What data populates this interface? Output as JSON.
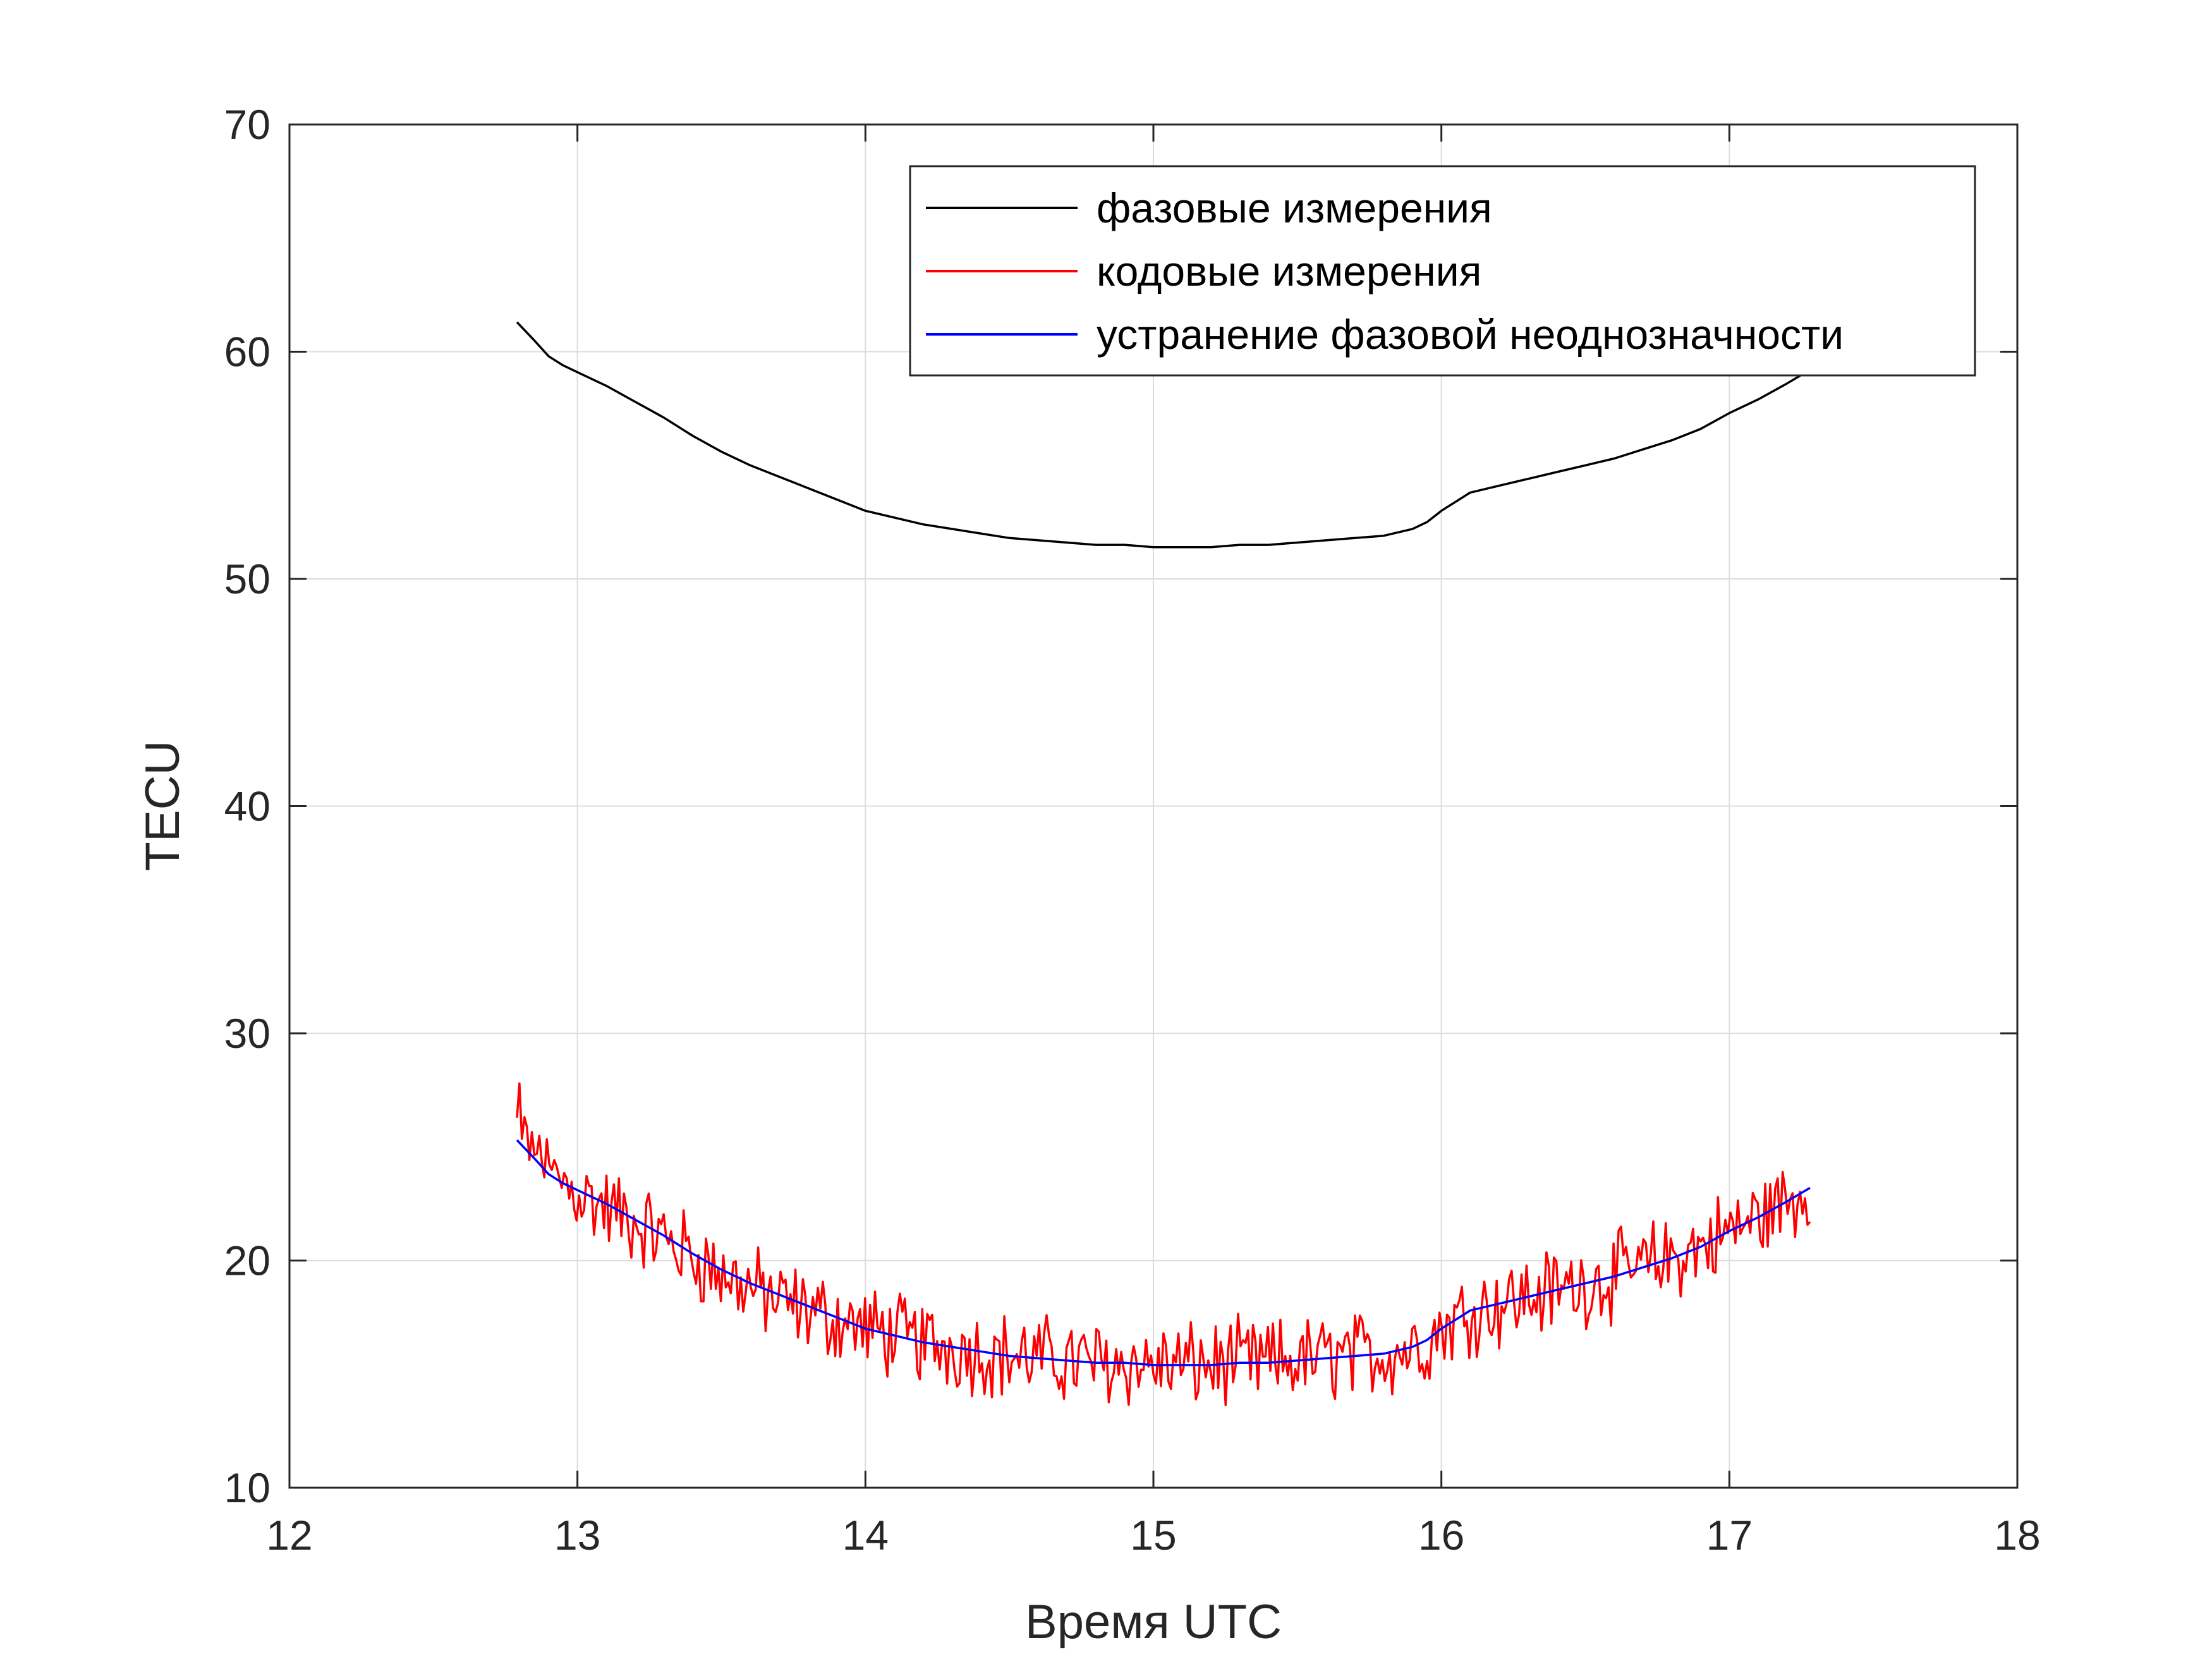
{
  "chart_data": {
    "type": "line",
    "xlabel": "Время UTC",
    "ylabel": "TECU",
    "xlim": [
      12,
      18
    ],
    "ylim": [
      10,
      70
    ],
    "xticks": [
      12,
      13,
      14,
      15,
      16,
      17,
      18
    ],
    "yticks": [
      10,
      20,
      30,
      40,
      50,
      60,
      70
    ],
    "grid": true,
    "legend_position": "top-right",
    "series": [
      {
        "name": "фазовые измерения",
        "color": "#000000",
        "points": [
          [
            12.79,
            61.3
          ],
          [
            12.85,
            60.5
          ],
          [
            12.9,
            59.8
          ],
          [
            12.95,
            59.4
          ],
          [
            13.0,
            59.1
          ],
          [
            13.1,
            58.5
          ],
          [
            13.2,
            57.8
          ],
          [
            13.3,
            57.1
          ],
          [
            13.4,
            56.3
          ],
          [
            13.5,
            55.6
          ],
          [
            13.6,
            55.0
          ],
          [
            13.7,
            54.5
          ],
          [
            13.8,
            54.0
          ],
          [
            13.9,
            53.5
          ],
          [
            14.0,
            53.0
          ],
          [
            14.1,
            52.7
          ],
          [
            14.2,
            52.4
          ],
          [
            14.3,
            52.2
          ],
          [
            14.4,
            52.0
          ],
          [
            14.5,
            51.8
          ],
          [
            14.6,
            51.7
          ],
          [
            14.7,
            51.6
          ],
          [
            14.8,
            51.5
          ],
          [
            14.9,
            51.5
          ],
          [
            15.0,
            51.4
          ],
          [
            15.1,
            51.4
          ],
          [
            15.2,
            51.4
          ],
          [
            15.3,
            51.5
          ],
          [
            15.4,
            51.5
          ],
          [
            15.5,
            51.6
          ],
          [
            15.6,
            51.7
          ],
          [
            15.7,
            51.8
          ],
          [
            15.8,
            51.9
          ],
          [
            15.9,
            52.2
          ],
          [
            15.95,
            52.5
          ],
          [
            16.0,
            53.0
          ],
          [
            16.05,
            53.4
          ],
          [
            16.1,
            53.8
          ],
          [
            16.2,
            54.1
          ],
          [
            16.3,
            54.4
          ],
          [
            16.4,
            54.7
          ],
          [
            16.5,
            55.0
          ],
          [
            16.6,
            55.3
          ],
          [
            16.7,
            55.7
          ],
          [
            16.8,
            56.1
          ],
          [
            16.9,
            56.6
          ],
          [
            17.0,
            57.3
          ],
          [
            17.1,
            57.9
          ],
          [
            17.2,
            58.6
          ],
          [
            17.28,
            59.2
          ]
        ]
      },
      {
        "name": "кодовые измерения",
        "color": "#ff0000",
        "noise_amplitude": 1.6,
        "points": [
          [
            12.79,
            25.3
          ],
          [
            12.85,
            24.3
          ],
          [
            12.9,
            23.8
          ],
          [
            12.95,
            23.4
          ],
          [
            13.0,
            23.0
          ],
          [
            13.1,
            22.3
          ],
          [
            13.2,
            21.7
          ],
          [
            13.3,
            21.0
          ],
          [
            13.4,
            20.2
          ],
          [
            13.5,
            19.4
          ],
          [
            13.6,
            18.8
          ],
          [
            13.7,
            18.2
          ],
          [
            13.8,
            17.8
          ],
          [
            13.9,
            17.4
          ],
          [
            14.0,
            17.0
          ],
          [
            14.1,
            16.7
          ],
          [
            14.2,
            16.4
          ],
          [
            14.3,
            16.2
          ],
          [
            14.4,
            16.0
          ],
          [
            14.5,
            15.8
          ],
          [
            14.6,
            15.7
          ],
          [
            14.7,
            15.6
          ],
          [
            14.8,
            15.5
          ],
          [
            14.9,
            15.5
          ],
          [
            15.0,
            15.4
          ],
          [
            15.1,
            15.4
          ],
          [
            15.2,
            15.4
          ],
          [
            15.3,
            15.5
          ],
          [
            15.4,
            15.5
          ],
          [
            15.5,
            15.6
          ],
          [
            15.6,
            15.7
          ],
          [
            15.7,
            15.8
          ],
          [
            15.8,
            15.9
          ],
          [
            15.9,
            16.2
          ],
          [
            15.95,
            16.5
          ],
          [
            16.0,
            17.0
          ],
          [
            16.05,
            17.4
          ],
          [
            16.1,
            17.8
          ],
          [
            16.2,
            18.1
          ],
          [
            16.3,
            18.4
          ],
          [
            16.4,
            18.7
          ],
          [
            16.5,
            19.0
          ],
          [
            16.6,
            19.3
          ],
          [
            16.7,
            19.7
          ],
          [
            16.8,
            20.1
          ],
          [
            16.9,
            20.6
          ],
          [
            17.0,
            21.3
          ],
          [
            17.1,
            21.9
          ],
          [
            17.2,
            22.6
          ],
          [
            17.28,
            23.2
          ]
        ]
      },
      {
        "name": "устранение фазовой неоднозначности",
        "color": "#0000ff",
        "points": [
          [
            12.79,
            25.3
          ],
          [
            12.85,
            24.5
          ],
          [
            12.9,
            23.8
          ],
          [
            12.95,
            23.4
          ],
          [
            13.0,
            23.1
          ],
          [
            13.1,
            22.5
          ],
          [
            13.2,
            21.8
          ],
          [
            13.3,
            21.1
          ],
          [
            13.4,
            20.3
          ],
          [
            13.5,
            19.6
          ],
          [
            13.6,
            19.0
          ],
          [
            13.7,
            18.5
          ],
          [
            13.8,
            18.0
          ],
          [
            13.9,
            17.5
          ],
          [
            14.0,
            17.0
          ],
          [
            14.1,
            16.7
          ],
          [
            14.2,
            16.4
          ],
          [
            14.3,
            16.2
          ],
          [
            14.4,
            16.0
          ],
          [
            14.5,
            15.8
          ],
          [
            14.6,
            15.7
          ],
          [
            14.7,
            15.6
          ],
          [
            14.8,
            15.5
          ],
          [
            14.9,
            15.5
          ],
          [
            15.0,
            15.4
          ],
          [
            15.1,
            15.4
          ],
          [
            15.2,
            15.4
          ],
          [
            15.3,
            15.5
          ],
          [
            15.4,
            15.5
          ],
          [
            15.5,
            15.6
          ],
          [
            15.6,
            15.7
          ],
          [
            15.7,
            15.8
          ],
          [
            15.8,
            15.9
          ],
          [
            15.9,
            16.2
          ],
          [
            15.95,
            16.5
          ],
          [
            16.0,
            17.0
          ],
          [
            16.05,
            17.4
          ],
          [
            16.1,
            17.8
          ],
          [
            16.2,
            18.1
          ],
          [
            16.3,
            18.4
          ],
          [
            16.4,
            18.7
          ],
          [
            16.5,
            19.0
          ],
          [
            16.6,
            19.3
          ],
          [
            16.7,
            19.7
          ],
          [
            16.8,
            20.1
          ],
          [
            16.9,
            20.6
          ],
          [
            17.0,
            21.3
          ],
          [
            17.1,
            21.9
          ],
          [
            17.2,
            22.6
          ],
          [
            17.28,
            23.2
          ]
        ]
      }
    ]
  }
}
